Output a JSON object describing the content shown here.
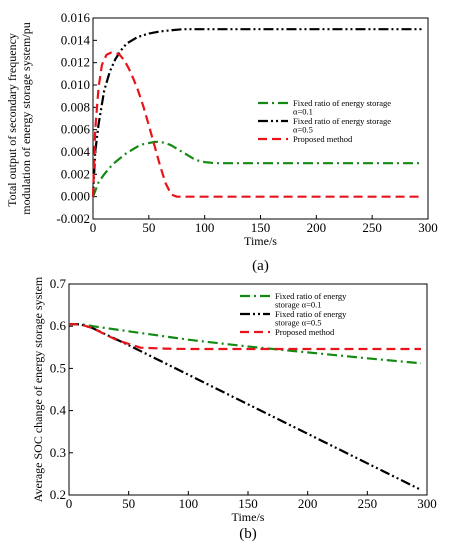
{
  "chart_data": [
    {
      "type": "line",
      "panel_label": "(a)",
      "xlabel": "Time/s",
      "ylabel_lines": [
        "Total output of secondary frequency",
        "modulation of energy storage system/pu"
      ],
      "xlim": [
        0,
        300
      ],
      "ylim": [
        -0.002,
        0.016
      ],
      "x_ticks": [
        0,
        50,
        100,
        150,
        200,
        250,
        300
      ],
      "y_ticks": [
        -0.002,
        0.0,
        0.002,
        0.004,
        0.006,
        0.008,
        0.01,
        0.012,
        0.014,
        0.016
      ],
      "x_tick_labels": [
        "0",
        "50",
        "100",
        "150",
        "200",
        "250",
        "300"
      ],
      "y_tick_labels": [
        "-0.002",
        "0.000",
        "0.002",
        "0.004",
        "0.006",
        "0.008",
        "0.010",
        "0.012",
        "0.014",
        "0.016"
      ],
      "legend_position": "right-middle",
      "series": [
        {
          "legend_lines": [
            "Fixed ratio of energy storage",
            "α=0.1"
          ],
          "color": "#138a13",
          "style": "dashdot",
          "x": [
            0,
            5,
            10,
            15,
            20,
            25,
            30,
            35,
            40,
            45,
            50,
            55,
            60,
            65,
            70,
            75,
            80,
            85,
            90,
            95,
            100,
            110,
            120,
            130,
            140,
            150,
            200,
            250,
            295
          ],
          "y": [
            0,
            0.0013,
            0.002,
            0.0026,
            0.0031,
            0.0035,
            0.0039,
            0.0042,
            0.0045,
            0.0047,
            0.0048,
            0.0049,
            0.0049,
            0.0048,
            0.0046,
            0.0043,
            0.004,
            0.0037,
            0.0034,
            0.0032,
            0.0031,
            0.003,
            0.003,
            0.003,
            0.003,
            0.003,
            0.003,
            0.003,
            0.003
          ]
        },
        {
          "legend_lines": [
            "Fixed ratio of energy storage",
            "α=0.5"
          ],
          "color": "#000000",
          "style": "dashdotdot",
          "x": [
            0,
            2,
            5,
            10,
            15,
            20,
            25,
            30,
            40,
            50,
            60,
            70,
            80,
            90,
            100,
            150,
            200,
            250,
            295
          ],
          "y": [
            0,
            0.004,
            0.0065,
            0.0095,
            0.0112,
            0.0123,
            0.0131,
            0.0137,
            0.0143,
            0.0146,
            0.0148,
            0.0149,
            0.015,
            0.015,
            0.015,
            0.015,
            0.015,
            0.015,
            0.015
          ]
        },
        {
          "legend_lines": [
            "Proposed method"
          ],
          "color": "#e8141b",
          "style": "dash",
          "x": [
            0,
            2,
            5,
            8,
            12,
            16,
            20,
            24,
            28,
            32,
            36,
            40,
            45,
            50,
            55,
            60,
            65,
            70,
            75,
            80,
            90,
            100,
            150,
            200,
            250,
            295
          ],
          "y": [
            0,
            0.006,
            0.0098,
            0.0118,
            0.0127,
            0.0129,
            0.0129,
            0.0127,
            0.0122,
            0.0115,
            0.0106,
            0.0096,
            0.0081,
            0.0064,
            0.0046,
            0.0028,
            0.0012,
            0.0002,
            0.0,
            0.0,
            0.0,
            0.0,
            0.0,
            0.0,
            0.0,
            0.0
          ]
        }
      ]
    },
    {
      "type": "line",
      "panel_label": "(b)",
      "xlabel": "Time/s",
      "ylabel_lines": [
        "Average SOC change of energy storage system"
      ],
      "xlim": [
        0,
        300
      ],
      "ylim": [
        0.2,
        0.7
      ],
      "x_ticks": [
        0,
        50,
        100,
        150,
        200,
        250,
        300
      ],
      "y_ticks": [
        0.2,
        0.3,
        0.4,
        0.5,
        0.6,
        0.7
      ],
      "x_tick_labels": [
        "0",
        "50",
        "100",
        "150",
        "200",
        "250",
        "300"
      ],
      "y_tick_labels": [
        "0.2",
        "0.3",
        "0.4",
        "0.5",
        "0.6",
        "0.7"
      ],
      "legend_position": "top-right",
      "series": [
        {
          "legend_lines": [
            "Fixed ratio of energy",
            "storage α=0.1"
          ],
          "color": "#138a13",
          "style": "dashdot",
          "x": [
            0,
            10,
            20,
            50,
            100,
            150,
            200,
            250,
            295
          ],
          "y": [
            0.605,
            0.605,
            0.6,
            0.588,
            0.568,
            0.552,
            0.538,
            0.524,
            0.512
          ]
        },
        {
          "legend_lines": [
            "Fixed ratio of energy",
            "storage α=0.5"
          ],
          "color": "#000000",
          "style": "dashdotdot",
          "x": [
            0,
            10,
            20,
            50,
            100,
            150,
            200,
            250,
            295
          ],
          "y": [
            0.605,
            0.604,
            0.595,
            0.555,
            0.485,
            0.415,
            0.345,
            0.275,
            0.212
          ]
        },
        {
          "legend_lines": [
            "Proposed method"
          ],
          "color": "#e8141b",
          "style": "dash",
          "x": [
            0,
            10,
            20,
            40,
            60,
            80,
            100,
            150,
            200,
            250,
            295
          ],
          "y": [
            0.605,
            0.604,
            0.595,
            0.567,
            0.549,
            0.547,
            0.546,
            0.546,
            0.546,
            0.546,
            0.546
          ]
        }
      ]
    }
  ]
}
